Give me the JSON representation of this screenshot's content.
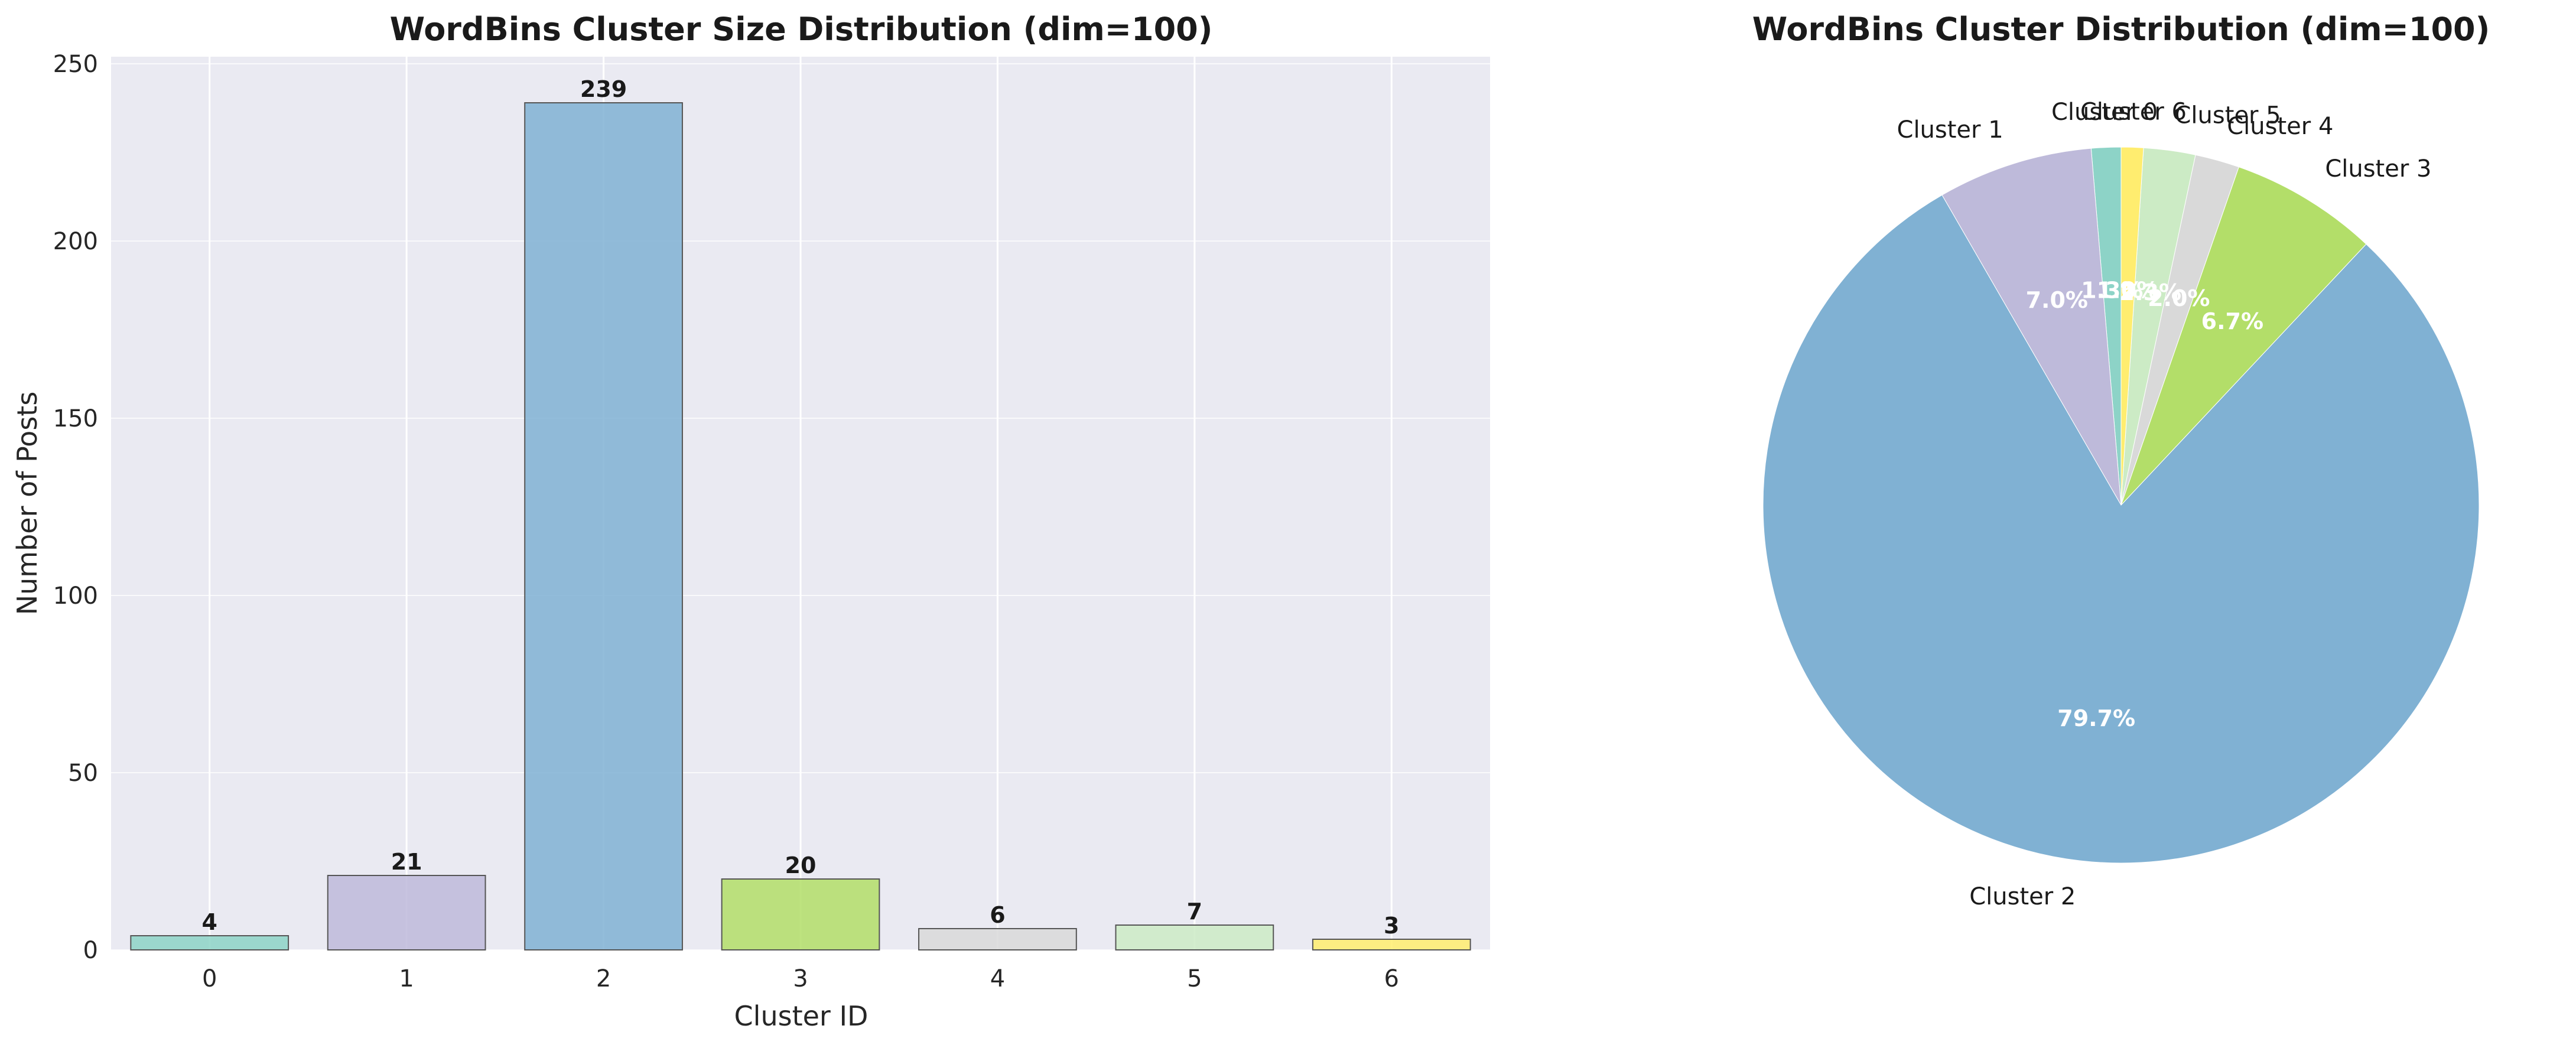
{
  "colors": {
    "axes_bg": "#eaeaf2",
    "grid": "#ffffff",
    "bar_edge": "#555555",
    "palette": [
      "#8dd3c7",
      "#bebada",
      "#80b1d3",
      "#b3de69",
      "#d9d9d9",
      "#ccebc5",
      "#ffed6f"
    ]
  },
  "chart_data": [
    {
      "type": "bar",
      "title": "WordBins Cluster Size Distribution (dim=100)",
      "xlabel": "Cluster ID",
      "ylabel": "Number of Posts",
      "categories": [
        "0",
        "1",
        "2",
        "3",
        "4",
        "5",
        "6"
      ],
      "values": [
        4,
        21,
        239,
        20,
        6,
        7,
        3
      ],
      "value_labels": [
        "4",
        "21",
        "239",
        "20",
        "6",
        "7",
        "3"
      ],
      "yticks": [
        "0",
        "50",
        "100",
        "150",
        "200",
        "250"
      ],
      "ylim": [
        0,
        252
      ],
      "grid": true
    },
    {
      "type": "pie",
      "title": "WordBins Cluster Distribution (dim=100)",
      "labels": [
        "Cluster 0",
        "Cluster 1",
        "Cluster 2",
        "Cluster 3",
        "Cluster 4",
        "Cluster 5",
        "Cluster 6"
      ],
      "values": [
        4,
        21,
        239,
        20,
        6,
        7,
        3
      ],
      "percent_labels": [
        "1.3%",
        "7.0%",
        "79.7%",
        "6.7%",
        "2.0%",
        "2.3%",
        "1.0%"
      ],
      "start_angle_deg": 90,
      "direction": "counterclockwise"
    }
  ]
}
